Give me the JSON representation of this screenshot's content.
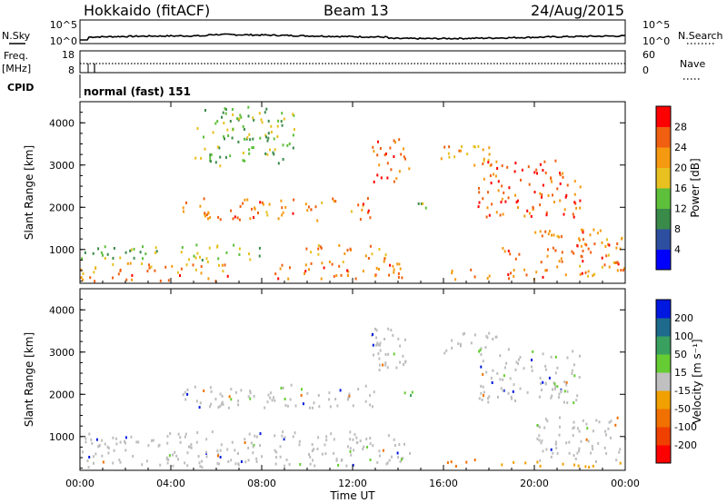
{
  "header": {
    "station": "Hokkaido (fitACF)",
    "beam": "Beam 13",
    "date": "24/Aug/2015"
  },
  "top_panels": {
    "nsky_label": "N.Sky",
    "nsky_ticks": [
      "10^5",
      "10^0"
    ],
    "nsearch_label": "N.Search",
    "nsearch_ticks": [
      "10^5",
      "10^0"
    ],
    "freq_label": "Freq.",
    "freq_unit": "[MHz]",
    "freq_ticks": [
      "18",
      "8"
    ],
    "nave_label": "Nave",
    "nave_ticks": [
      "60",
      "0"
    ],
    "cpid_label": "CPID",
    "cpid_value": "normal (fast) 151"
  },
  "colors": {
    "power_scale": [
      "#0000ff",
      "#2e4fa0",
      "#3a8a4a",
      "#5dbf3a",
      "#e8c020",
      "#f59a10",
      "#f06010",
      "#ff0000"
    ],
    "velocity_scale": [
      "#0018e0",
      "#1e6a8c",
      "#3aa060",
      "#66cc33",
      "#c0c0c0",
      "#f0a000",
      "#f07000",
      "#f04000",
      "#ff0000"
    ],
    "velocity_grey": "#bdbdbd"
  },
  "chart_data": [
    {
      "type": "heatmap",
      "name": "power",
      "ylabel": "Slant Range [km]",
      "yticks": [
        "1000",
        "2000",
        "3000",
        "4000"
      ],
      "ylim": [
        200,
        4500
      ],
      "xticks": [
        "00:00",
        "04:00",
        "08:00",
        "12:00",
        "16:00",
        "20:00",
        "00:00"
      ],
      "xlim_hours": [
        0,
        24
      ],
      "colorbar": {
        "label": "Power [dB]",
        "ticks": [
          "4",
          "8",
          "12",
          "16",
          "20",
          "24",
          "28"
        ],
        "range": [
          0,
          32
        ]
      },
      "bands": [
        {
          "t0": 0.0,
          "t1": 6.5,
          "r0": 280,
          "r1": 420,
          "p": 26
        },
        {
          "t0": 0.0,
          "t1": 7.0,
          "r0": 450,
          "r1": 760,
          "p": 22
        },
        {
          "t0": 0.0,
          "t1": 8.0,
          "r0": 780,
          "r1": 1150,
          "p": 14
        },
        {
          "t0": 8.5,
          "t1": 14.5,
          "r0": 330,
          "r1": 700,
          "p": 25
        },
        {
          "t0": 9.5,
          "t1": 13.5,
          "r0": 700,
          "r1": 1150,
          "p": 23
        },
        {
          "t0": 4.5,
          "t1": 13.0,
          "r0": 1700,
          "r1": 2250,
          "p": 24
        },
        {
          "t0": 12.8,
          "t1": 14.5,
          "r0": 2600,
          "r1": 3650,
          "p": 27
        },
        {
          "t0": 15.8,
          "t1": 18.3,
          "r0": 3000,
          "r1": 3500,
          "p": 21
        },
        {
          "t0": 17.5,
          "t1": 22.0,
          "r0": 1800,
          "r1": 3150,
          "p": 26
        },
        {
          "t0": 20.0,
          "t1": 24.0,
          "r0": 380,
          "r1": 1500,
          "p": 24
        },
        {
          "t0": 16.0,
          "t1": 20.5,
          "r0": 300,
          "r1": 600,
          "p": 25
        },
        {
          "t0": 5.0,
          "t1": 9.5,
          "r0": 3000,
          "r1": 4400,
          "p": 14
        },
        {
          "t0": 14.2,
          "t1": 15.2,
          "r0": 1950,
          "r1": 2150,
          "p": 13
        },
        {
          "t0": 18.5,
          "t1": 19.5,
          "r0": 700,
          "r1": 1100,
          "p": 26
        }
      ]
    },
    {
      "type": "heatmap",
      "name": "velocity",
      "ylabel": "Slant Range [km]",
      "yticks": [
        "1000",
        "2000",
        "3000",
        "4000"
      ],
      "ylim": [
        200,
        4500
      ],
      "xticks": [
        "00:00",
        "04:00",
        "08:00",
        "12:00",
        "16:00",
        "20:00",
        "00:00"
      ],
      "xlim_hours": [
        0,
        24
      ],
      "xlabel": "Time UT",
      "colorbar": {
        "label": "Velocity [m s⁻¹]",
        "ticks": [
          "200",
          "100",
          "50",
          "15",
          "-15",
          "-50",
          "-100",
          "-200"
        ],
        "range": [
          -250,
          250
        ]
      },
      "bands": [
        {
          "t0": 0.0,
          "t1": 8.0,
          "r0": 280,
          "r1": 1150,
          "v": 0
        },
        {
          "t0": 8.5,
          "t1": 14.5,
          "r0": 330,
          "r1": 1150,
          "v": 0
        },
        {
          "t0": 4.5,
          "t1": 13.0,
          "r0": 1700,
          "r1": 2250,
          "v": 0
        },
        {
          "t0": 12.8,
          "t1": 14.5,
          "r0": 2600,
          "r1": 3650,
          "v": 0
        },
        {
          "t0": 15.8,
          "t1": 18.3,
          "r0": 3000,
          "r1": 3500,
          "v": 0
        },
        {
          "t0": 17.5,
          "t1": 22.0,
          "r0": 1800,
          "r1": 3150,
          "v": 0
        },
        {
          "t0": 20.0,
          "t1": 24.0,
          "r0": 380,
          "r1": 1500,
          "v": 0
        },
        {
          "t0": 14.2,
          "t1": 15.0,
          "r0": 1950,
          "r1": 2150,
          "v": 60
        },
        {
          "t0": 16.0,
          "t1": 17.5,
          "r0": 280,
          "r1": 480,
          "v": -90
        },
        {
          "t0": 18.0,
          "t1": 24.0,
          "r0": 300,
          "r1": 440,
          "v": -40
        },
        {
          "t0": 9.5,
          "t1": 11.5,
          "r0": 290,
          "r1": 420,
          "v": 40
        }
      ]
    }
  ]
}
